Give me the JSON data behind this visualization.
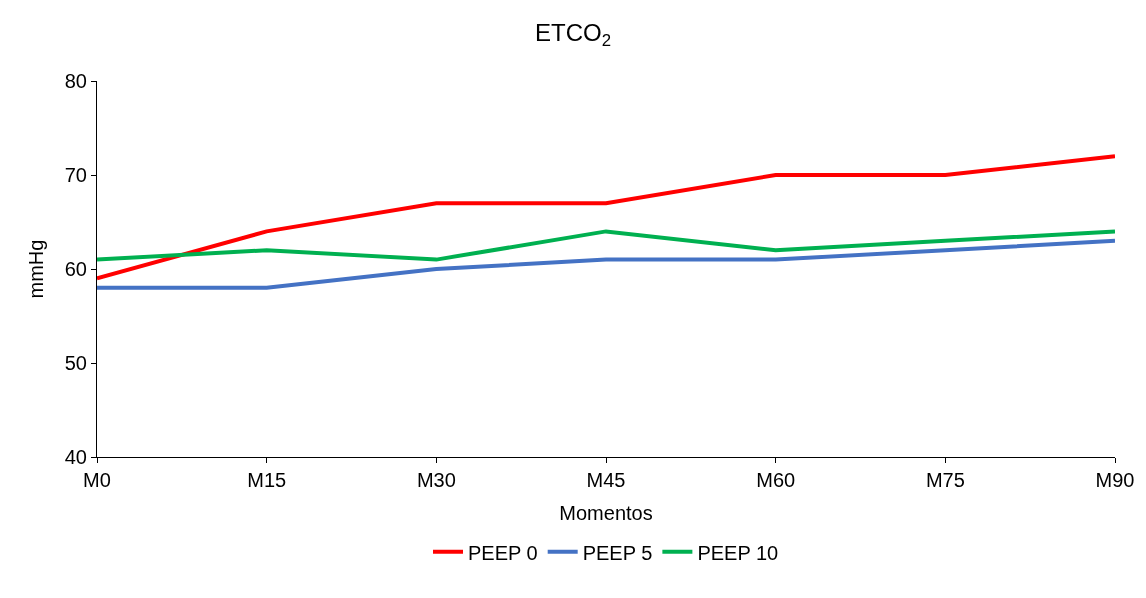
{
  "chart_data": {
    "type": "line",
    "title": "ETCO$_{2}$",
    "xlabel": "Momentos",
    "ylabel": "mmHg",
    "categories": [
      "M0",
      "M15",
      "M30",
      "M45",
      "M60",
      "M75",
      "M90"
    ],
    "series": [
      {
        "name": "PEEP 0",
        "color": "#ff0000",
        "values": [
          59,
          64,
          67,
          67,
          70,
          70,
          72
        ]
      },
      {
        "name": "PEEP 5",
        "color": "#4472c4",
        "values": [
          58,
          58,
          60,
          61,
          61,
          62,
          63
        ]
      },
      {
        "name": "PEEP 10",
        "color": "#00b050",
        "values": [
          61,
          62,
          61,
          64,
          62,
          63,
          64
        ]
      }
    ],
    "ylim": [
      40,
      80
    ],
    "yticks": [
      40,
      50,
      60,
      70,
      80
    ],
    "legend": "bottom",
    "marker": "none",
    "line_style": "solid"
  }
}
